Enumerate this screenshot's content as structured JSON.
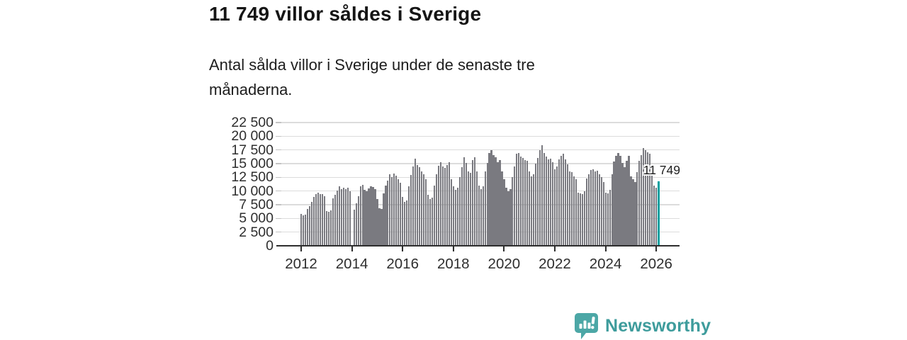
{
  "header": {
    "title": "11 749 villor såldes i Sverige",
    "subtitle": "Antal sålda villor i Sverige under de senaste tre månaderna."
  },
  "footer": {
    "brand": "Newsworthy",
    "logo_icon": "speech-bubble-bar-chart-icon",
    "brand_color": "#3e9c9c",
    "icon_color": "#4ca7a6"
  },
  "chart_data": {
    "type": "bar",
    "title": "11 749 villor såldes i Sverige",
    "xlabel": "",
    "ylabel": "",
    "x_start": "2012-01",
    "x_end": "2026-02",
    "x_interval": "month",
    "ylim": [
      0,
      22500
    ],
    "grid": "horizontal",
    "legend": "none",
    "bar_color": "#7a7a80",
    "highlight": {
      "index": 169,
      "value": 11749,
      "label": "11 749",
      "color": "#00a0a0"
    },
    "y_tick_values": [
      0,
      2500,
      5000,
      7500,
      10000,
      12500,
      15000,
      17500,
      20000,
      22500
    ],
    "y_tick_labels": [
      "0",
      "2 500",
      "5 000",
      "7 500",
      "10 000",
      "12 500",
      "15 000",
      "17 500",
      "20 000",
      "22 500"
    ],
    "x_tick_years": [
      2012,
      2014,
      2016,
      2018,
      2020,
      2022,
      2024,
      2026
    ],
    "x_tick_labels": [
      "2012",
      "2014",
      "2016",
      "2018",
      "2020",
      "2022",
      "2024",
      "2026"
    ],
    "values": [
      5800,
      5600,
      5700,
      6700,
      7300,
      8000,
      8900,
      9500,
      9700,
      9400,
      9500,
      9100,
      6300,
      6200,
      6500,
      8700,
      9300,
      10100,
      10800,
      10300,
      10600,
      10400,
      10600,
      10000,
      null,
      6600,
      7800,
      9100,
      10900,
      11100,
      10200,
      9900,
      10500,
      10800,
      10700,
      10400,
      8500,
      6800,
      6700,
      9600,
      11000,
      11900,
      13000,
      12600,
      13200,
      12800,
      12100,
      11500,
      8900,
      8000,
      8300,
      10900,
      12900,
      14500,
      15900,
      14800,
      14300,
      13600,
      13100,
      12200,
      9300,
      8500,
      8800,
      11000,
      13000,
      14600,
      15300,
      14500,
      14200,
      14800,
      15300,
      12100,
      10800,
      10200,
      10600,
      12500,
      14300,
      16200,
      15100,
      13600,
      13300,
      15700,
      16200,
      13600,
      11000,
      10300,
      10800,
      13600,
      15100,
      16900,
      17400,
      16600,
      16100,
      15300,
      15700,
      13600,
      12100,
      10600,
      10000,
      10300,
      12500,
      14500,
      16800,
      16900,
      16300,
      16000,
      15700,
      15500,
      13600,
      12700,
      13000,
      15000,
      16000,
      17500,
      18400,
      17000,
      16300,
      15800,
      15900,
      15300,
      14000,
      14500,
      15800,
      16400,
      16800,
      15800,
      14900,
      13600,
      13400,
      12700,
      12100,
      9700,
      9550,
      9400,
      10000,
      12300,
      13000,
      13800,
      14000,
      13600,
      13700,
      13000,
      12500,
      11700,
      9700,
      9550,
      10200,
      13000,
      15400,
      16400,
      16900,
      16400,
      15100,
      14300,
      15500,
      16400,
      12700,
      12100,
      11700,
      13500,
      15500,
      16600,
      17800,
      17400,
      17100,
      16800,
      12740,
      11010,
      10580,
      11749
    ]
  }
}
